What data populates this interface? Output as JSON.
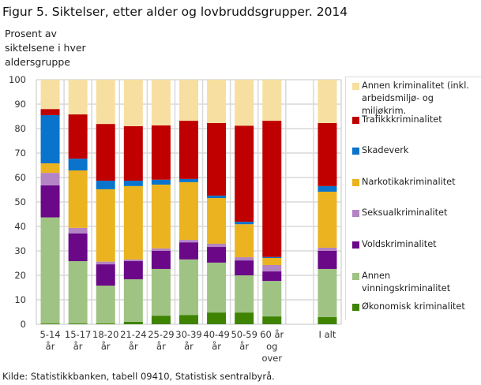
{
  "chart_data": {
    "type": "bar",
    "stacked": true,
    "title": "Figur 5. Siktelser, etter alder og lovbruddsgrupper. 2014",
    "ylabel": "Prosent av siktelsene i hver aldersgruppe",
    "xlabel": "",
    "ylim": [
      0,
      100
    ],
    "yticks": [
      0,
      10,
      20,
      30,
      40,
      50,
      60,
      70,
      80,
      90,
      100
    ],
    "grid": true,
    "legend_position": "right",
    "categories": [
      [
        "5-14",
        "år"
      ],
      [
        "15-17",
        "år"
      ],
      [
        "18-20",
        "år"
      ],
      [
        "21-24",
        "år"
      ],
      [
        "25-29",
        "år"
      ],
      [
        "30-39",
        "år"
      ],
      [
        "40-49",
        "år"
      ],
      [
        "50-59",
        "år"
      ],
      [
        "60 år",
        "og",
        "over"
      ],
      [],
      [
        "I alt"
      ]
    ],
    "series": [
      {
        "name": "Økonomisk kriminalitet",
        "color": "#3e8400",
        "values": [
          0.3,
          0.3,
          0.3,
          1.0,
          3.5,
          3.8,
          4.8,
          4.8,
          3.2,
          null,
          2.9
        ]
      },
      {
        "name": "Annen vinningskriminalitet",
        "color": "#9fc383",
        "values": [
          43.4,
          25.5,
          15.5,
          17.4,
          19.1,
          22.7,
          20.4,
          15.2,
          14.5,
          null,
          19.7
        ]
      },
      {
        "name": "Voldskriminalitet",
        "color": "#6a0888",
        "values": [
          13.1,
          11.3,
          8.7,
          7.4,
          7.4,
          7.0,
          6.4,
          6.1,
          3.9,
          null,
          7.4
        ]
      },
      {
        "name": "Seksualkriminalitet",
        "color": "#b385c4",
        "values": [
          5.1,
          2.3,
          1.1,
          0.7,
          1.0,
          1.0,
          1.3,
          1.3,
          2.6,
          null,
          1.3
        ]
      },
      {
        "name": "Narkotikakriminalitet",
        "color": "#ebb320",
        "values": [
          3.9,
          23.5,
          29.6,
          30.0,
          26.1,
          23.6,
          18.7,
          13.5,
          2.9,
          null,
          22.9
        ]
      },
      {
        "name": "Skadeverk",
        "color": "#0a74cc",
        "values": [
          19.7,
          4.8,
          3.5,
          2.2,
          2.0,
          1.3,
          1.0,
          1.0,
          0.4,
          null,
          2.3
        ]
      },
      {
        "name": "Trafikkkriminalitet",
        "color": "#c00000",
        "values": [
          2.5,
          18.1,
          23.2,
          22.3,
          22.2,
          23.8,
          29.7,
          39.3,
          55.7,
          null,
          25.8
        ]
      },
      {
        "name": "Annen kriminalitet (inkl. arbeidsmiljø- og miljøkrim.",
        "color": "#f6dfa0",
        "values": [
          12.0,
          14.2,
          18.1,
          19.0,
          18.7,
          16.8,
          17.7,
          18.8,
          16.8,
          null,
          17.7
        ]
      }
    ],
    "source": "Kilde: Statistikkbanken, tabell 09410, Statistisk sentralbyrå."
  }
}
